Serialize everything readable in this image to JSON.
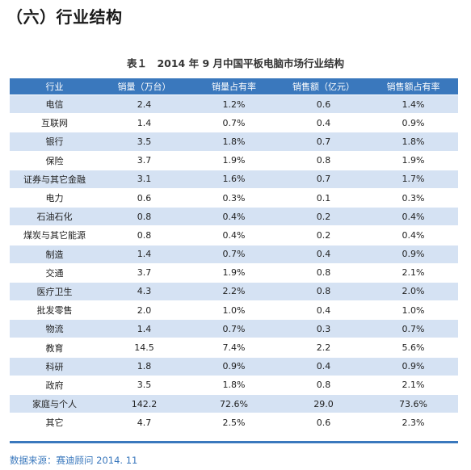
{
  "section_title": "（六）行业结构",
  "table_caption": "表１　2014 年 9 月中国平板电脑市场行业结构",
  "headers": [
    "行业",
    "销量（万台）",
    "销量占有率",
    "销售额（亿元）",
    "销售额占有率"
  ],
  "rows": [
    [
      "电信",
      "2.4",
      "1.2%",
      "0.6",
      "1.4%"
    ],
    [
      "互联网",
      "1.4",
      "0.7%",
      "0.4",
      "0.9%"
    ],
    [
      "银行",
      "3.5",
      "1.8%",
      "0.7",
      "1.8%"
    ],
    [
      "保险",
      "3.7",
      "1.9%",
      "0.8",
      "1.9%"
    ],
    [
      "证券与其它金融",
      "3.1",
      "1.6%",
      "0.7",
      "1.7%"
    ],
    [
      "电力",
      "0.6",
      "0.3%",
      "0.1",
      "0.3%"
    ],
    [
      "石油石化",
      "0.8",
      "0.4%",
      "0.2",
      "0.4%"
    ],
    [
      "煤炭与其它能源",
      "0.8",
      "0.4%",
      "0.2",
      "0.4%"
    ],
    [
      "制造",
      "1.4",
      "0.7%",
      "0.4",
      "0.9%"
    ],
    [
      "交通",
      "3.7",
      "1.9%",
      "0.8",
      "2.1%"
    ],
    [
      "医疗卫生",
      "4.3",
      "2.2%",
      "0.8",
      "2.0%"
    ],
    [
      "批发零售",
      "2.0",
      "1.0%",
      "0.4",
      "1.0%"
    ],
    [
      "物流",
      "1.4",
      "0.7%",
      "0.3",
      "0.7%"
    ],
    [
      "教育",
      "14.5",
      "7.4%",
      "2.2",
      "5.6%"
    ],
    [
      "科研",
      "1.8",
      "0.9%",
      "0.4",
      "0.9%"
    ],
    [
      "政府",
      "3.5",
      "1.8%",
      "0.8",
      "2.1%"
    ],
    [
      "家庭与个人",
      "142.2",
      "72.6%",
      "29.0",
      "73.6%"
    ],
    [
      "其它",
      "4.7",
      "2.5%",
      "0.6",
      "2.3%"
    ]
  ],
  "source": "数据来源：赛迪顾问 2014. 11",
  "colors": {
    "header_bg": "#3a78bd",
    "stripe_bg": "#d5e2f3",
    "source_text": "#3a78bd"
  }
}
